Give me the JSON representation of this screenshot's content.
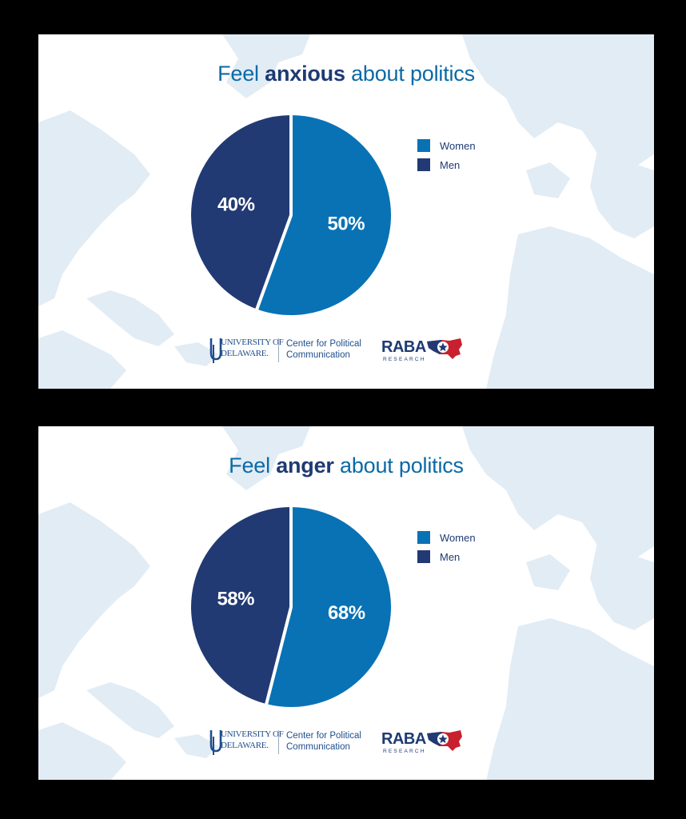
{
  "colors": {
    "women": "#0872b5",
    "men": "#213a73",
    "title_accent": "#1e3a73",
    "title_text": "#0a6aa6",
    "map_land": "#e2ecf5",
    "raba_red": "#c8202e"
  },
  "panels": [
    {
      "title_pre": "Feel",
      "title_bold": "anxious",
      "title_post": "about politics",
      "legend": [
        {
          "label": "Women"
        },
        {
          "label": "Men"
        }
      ],
      "footer": {
        "ud_line1": "UNIVERSITY OF",
        "ud_line2": "DELAWARE.",
        "cpc_line1": "Center for Political",
        "cpc_line2": "Communication",
        "raba": "RABA",
        "raba_sub": "RESEARCH"
      }
    },
    {
      "title_pre": "Feel",
      "title_bold": "anger",
      "title_post": "about politics",
      "legend": [
        {
          "label": "Women"
        },
        {
          "label": "Men"
        }
      ],
      "footer": {
        "ud_line1": "UNIVERSITY OF",
        "ud_line2": "DELAWARE.",
        "cpc_line1": "Center for Political",
        "cpc_line2": "Communication",
        "raba": "RABA",
        "raba_sub": "RESEARCH"
      }
    }
  ],
  "chart_data": [
    {
      "type": "pie",
      "title": "Feel anxious about politics",
      "legend_position": "right",
      "slices": [
        {
          "name": "Women",
          "value": 50,
          "label": "50%"
        },
        {
          "name": "Men",
          "value": 40,
          "label": "40%"
        }
      ]
    },
    {
      "type": "pie",
      "title": "Feel anger about politics",
      "legend_position": "right",
      "slices": [
        {
          "name": "Women",
          "value": 68,
          "label": "68%"
        },
        {
          "name": "Men",
          "value": 58,
          "label": "58%"
        }
      ]
    }
  ]
}
